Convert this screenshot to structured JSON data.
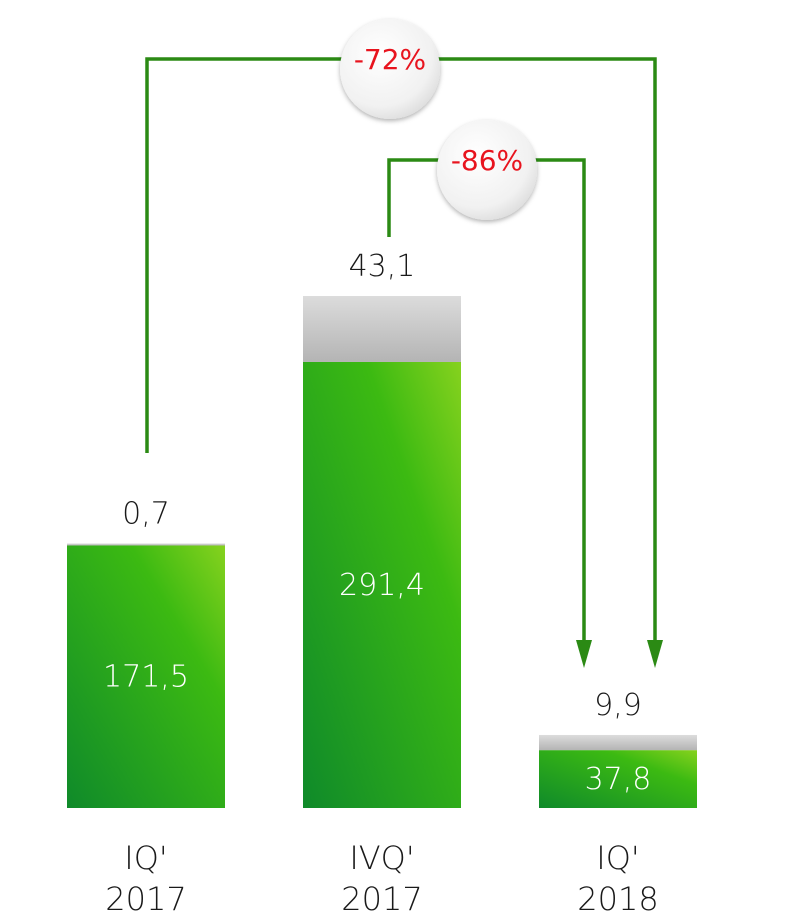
{
  "chart_data": {
    "type": "bar",
    "stacked": true,
    "categories": [
      [
        "IQ'",
        "2017"
      ],
      [
        "IVQ'",
        "2017"
      ],
      [
        "IQ'",
        "2018"
      ]
    ],
    "series": [
      {
        "values": [
          171.5,
          291.4,
          37.8
        ],
        "labels": [
          "171,5",
          "291,4",
          "37,8"
        ],
        "color": "#3cb61a"
      },
      {
        "values": [
          0.7,
          43.1,
          9.9
        ],
        "labels": [
          "0,7",
          "43,1",
          "9,9"
        ],
        "color": "#c9c9c9"
      }
    ],
    "annotations": [
      {
        "label": "-72%",
        "from": 0,
        "to": 2,
        "color": "#e8141e"
      },
      {
        "label": "-86%",
        "from": 1,
        "to": 2,
        "color": "#e8141e"
      }
    ],
    "connector_color": "#2b8a14",
    "ylim": [
      0,
      334.5
    ],
    "grid": false,
    "legend": "none"
  }
}
